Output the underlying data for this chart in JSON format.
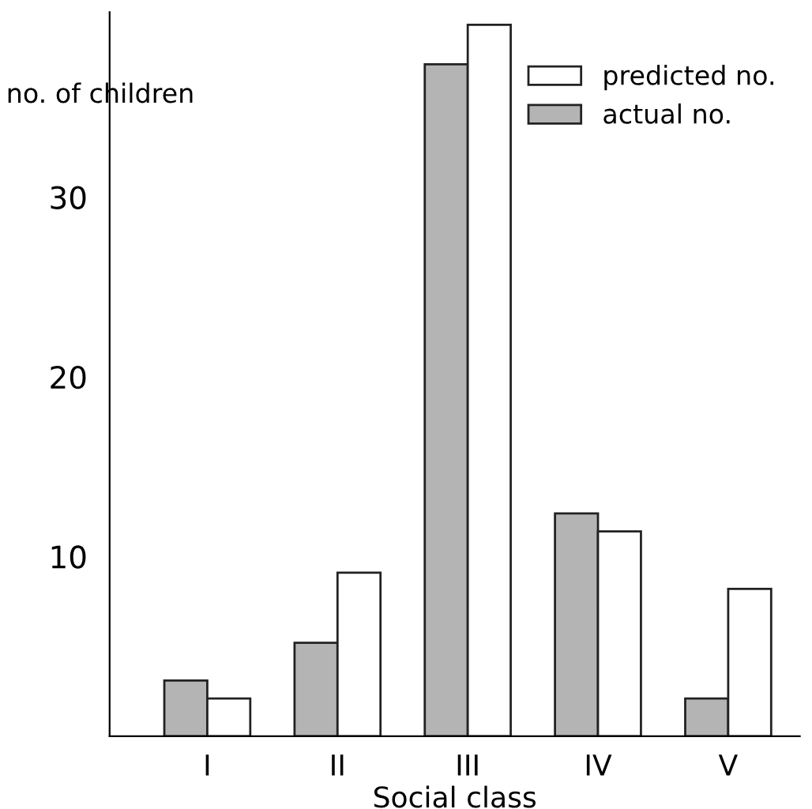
{
  "chart_data": {
    "type": "bar",
    "xlabel": "Social class",
    "ylabel": "no. of children",
    "categories": [
      "I",
      "II",
      "III",
      "IV",
      "V"
    ],
    "series": [
      {
        "name": "actual no.",
        "color": "#b4b4b4",
        "values": [
          3.1,
          5.2,
          37.4,
          12.4,
          2.1
        ]
      },
      {
        "name": "predicted no.",
        "color": "#ffffff",
        "values": [
          2.1,
          9.1,
          39.6,
          11.4,
          8.2
        ]
      }
    ],
    "ylim": [
      0,
      40.3
    ],
    "yticks": [
      10,
      20,
      30
    ],
    "grid": false,
    "legend": "top right"
  }
}
